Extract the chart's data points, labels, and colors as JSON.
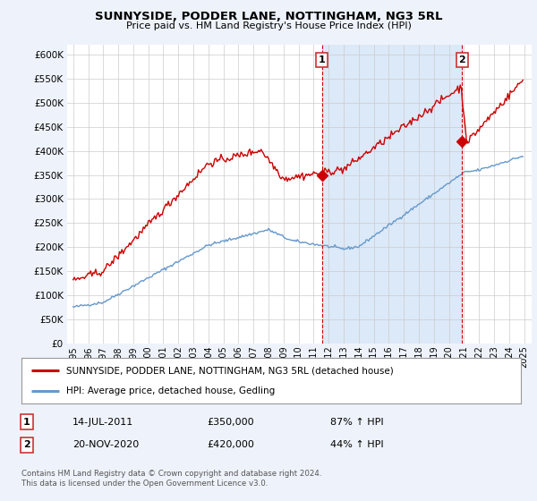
{
  "title": "SUNNYSIDE, PODDER LANE, NOTTINGHAM, NG3 5RL",
  "subtitle": "Price paid vs. HM Land Registry's House Price Index (HPI)",
  "legend_label_red": "SUNNYSIDE, PODDER LANE, NOTTINGHAM, NG3 5RL (detached house)",
  "legend_label_blue": "HPI: Average price, detached house, Gedling",
  "annotation1_date": "14-JUL-2011",
  "annotation1_price": "£350,000",
  "annotation1_hpi": "87% ↑ HPI",
  "annotation2_date": "20-NOV-2020",
  "annotation2_price": "£420,000",
  "annotation2_hpi": "44% ↑ HPI",
  "footnote": "Contains HM Land Registry data © Crown copyright and database right 2024.\nThis data is licensed under the Open Government Licence v3.0.",
  "ylim": [
    0,
    620000
  ],
  "yticks": [
    0,
    50000,
    100000,
    150000,
    200000,
    250000,
    300000,
    350000,
    400000,
    450000,
    500000,
    550000,
    600000
  ],
  "background_color": "#eef3fb",
  "plot_bg_color": "#ffffff",
  "shade_color": "#dce9f8",
  "red_color": "#cc0000",
  "blue_color": "#6699cc",
  "sale1_year": 2011.542,
  "sale1_price": 350000,
  "sale2_year": 2020.875,
  "sale2_price": 420000
}
